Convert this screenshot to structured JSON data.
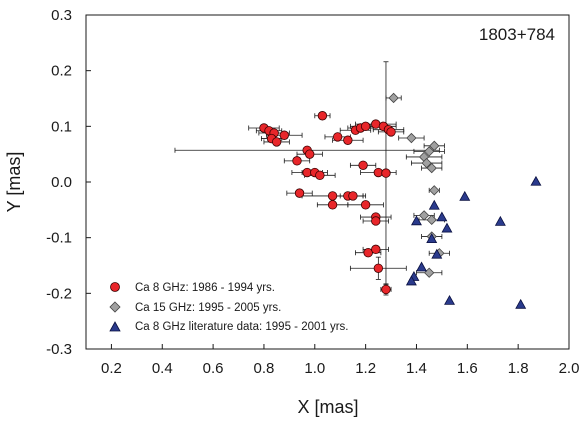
{
  "chart_data": {
    "type": "scatter",
    "annotation": "1803+784",
    "xlabel": "X [mas]",
    "ylabel": "Y [mas]",
    "xlim": [
      0.1,
      2.0
    ],
    "ylim": [
      -0.3,
      0.3
    ],
    "x_ticks": [
      "0.2",
      "0.4",
      "0.6",
      "0.8",
      "1.0",
      "1.2",
      "1.4",
      "1.6",
      "1.8",
      "2.0"
    ],
    "x_tick_values": [
      0.2,
      0.4,
      0.6,
      0.8,
      1.0,
      1.2,
      1.4,
      1.6,
      1.8,
      2.0
    ],
    "y_ticks": [
      "-0.3",
      "-0.2",
      "-0.1",
      "0.0",
      "0.1",
      "0.2",
      "0.3"
    ],
    "y_tick_values": [
      -0.3,
      -0.2,
      -0.1,
      0.0,
      0.1,
      0.2,
      0.3
    ],
    "grid": false,
    "legend_position": "bottom-left",
    "series": [
      {
        "name": "Ca 8 GHz: 1986 - 1994 yrs.",
        "marker": "circle",
        "color": "#e8262a",
        "points": [
          {
            "x": 0.8,
            "y": 0.097,
            "xerr": 0.06,
            "yerr": 0
          },
          {
            "x": 0.82,
            "y": 0.092,
            "xerr": 0.05,
            "yerr": 0
          },
          {
            "x": 0.84,
            "y": 0.088,
            "xerr": 0.06,
            "yerr": 0
          },
          {
            "x": 0.83,
            "y": 0.078,
            "xerr": 0.04,
            "yerr": 0
          },
          {
            "x": 0.85,
            "y": 0.072,
            "xerr": 0.05,
            "yerr": 0
          },
          {
            "x": 0.88,
            "y": 0.084,
            "xerr": 0.07,
            "yerr": 0
          },
          {
            "x": 1.03,
            "y": 0.119,
            "xerr": 0.03,
            "yerr": 0
          },
          {
            "x": 1.09,
            "y": 0.081,
            "xerr": 0.05,
            "yerr": 0
          },
          {
            "x": 1.13,
            "y": 0.075,
            "xerr": 0.06,
            "yerr": 0
          },
          {
            "x": 1.16,
            "y": 0.093,
            "xerr": 0.06,
            "yerr": 0
          },
          {
            "x": 1.18,
            "y": 0.097,
            "xerr": 0.05,
            "yerr": 0
          },
          {
            "x": 1.2,
            "y": 0.1,
            "xerr": 0.06,
            "yerr": 0
          },
          {
            "x": 1.24,
            "y": 0.104,
            "xerr": 0.08,
            "yerr": 0
          },
          {
            "x": 1.27,
            "y": 0.1,
            "xerr": 0.05,
            "yerr": 0
          },
          {
            "x": 1.29,
            "y": 0.094,
            "xerr": 0.06,
            "yerr": 0
          },
          {
            "x": 1.3,
            "y": 0.09,
            "xerr": 0.05,
            "yerr": 0
          },
          {
            "x": 0.97,
            "y": 0.057,
            "xerr": 0.52,
            "yerr": 0
          },
          {
            "x": 0.98,
            "y": 0.05,
            "xerr": 0.05,
            "yerr": 0
          },
          {
            "x": 0.93,
            "y": 0.038,
            "xerr": 0.05,
            "yerr": 0
          },
          {
            "x": 0.97,
            "y": 0.017,
            "xerr": 0.06,
            "yerr": 0
          },
          {
            "x": 1.0,
            "y": 0.017,
            "xerr": 0.05,
            "yerr": 0
          },
          {
            "x": 1.02,
            "y": 0.012,
            "xerr": 0.06,
            "yerr": 0
          },
          {
            "x": 1.19,
            "y": 0.03,
            "xerr": 0.05,
            "yerr": 0
          },
          {
            "x": 1.25,
            "y": 0.017,
            "xerr": 0.07,
            "yerr": 0
          },
          {
            "x": 1.28,
            "y": 0.016,
            "xerr": 0.0,
            "yerr": 0.2
          },
          {
            "x": 0.94,
            "y": -0.02,
            "xerr": 0.05,
            "yerr": 0
          },
          {
            "x": 1.07,
            "y": -0.025,
            "xerr": 0.12,
            "yerr": 0
          },
          {
            "x": 1.13,
            "y": -0.025,
            "xerr": 0.06,
            "yerr": 0
          },
          {
            "x": 1.15,
            "y": -0.025,
            "xerr": 0.05,
            "yerr": 0
          },
          {
            "x": 1.07,
            "y": -0.041,
            "xerr": 0.06,
            "yerr": 0
          },
          {
            "x": 1.2,
            "y": -0.041,
            "xerr": 0.07,
            "yerr": 0
          },
          {
            "x": 1.24,
            "y": -0.063,
            "xerr": 0.06,
            "yerr": 0
          },
          {
            "x": 1.24,
            "y": -0.07,
            "xerr": 0.05,
            "yerr": 0
          },
          {
            "x": 1.21,
            "y": -0.127,
            "xerr": 0.05,
            "yerr": 0
          },
          {
            "x": 1.24,
            "y": -0.121,
            "xerr": 0.05,
            "yerr": 0
          },
          {
            "x": 1.25,
            "y": -0.155,
            "xerr": 0.11,
            "yerr": 0.02
          },
          {
            "x": 1.28,
            "y": -0.193,
            "xerr": 0.02,
            "yerr": 0.01
          }
        ]
      },
      {
        "name": "Ca 15 GHz: 1995 - 2005 yrs.",
        "marker": "diamond",
        "color": "#a0a0a0",
        "points": [
          {
            "x": 1.31,
            "y": 0.151,
            "xerr": 0.03,
            "yerr": 0
          },
          {
            "x": 1.38,
            "y": 0.079,
            "xerr": 0.05,
            "yerr": 0
          },
          {
            "x": 1.47,
            "y": 0.065,
            "xerr": 0.04,
            "yerr": 0
          },
          {
            "x": 1.45,
            "y": 0.055,
            "xerr": 0.06,
            "yerr": 0
          },
          {
            "x": 1.43,
            "y": 0.045,
            "xerr": 0.07,
            "yerr": 0
          },
          {
            "x": 1.44,
            "y": 0.034,
            "xerr": 0.06,
            "yerr": 0
          },
          {
            "x": 1.46,
            "y": 0.025,
            "xerr": 0.04,
            "yerr": 0
          },
          {
            "x": 1.47,
            "y": -0.015,
            "xerr": 0.02,
            "yerr": 0
          },
          {
            "x": 1.43,
            "y": -0.06,
            "xerr": 0.04,
            "yerr": 0
          },
          {
            "x": 1.46,
            "y": -0.068,
            "xerr": 0.05,
            "yerr": 0
          },
          {
            "x": 1.46,
            "y": -0.098,
            "xerr": 0.04,
            "yerr": 0
          },
          {
            "x": 1.49,
            "y": -0.128,
            "xerr": 0.04,
            "yerr": 0
          },
          {
            "x": 1.45,
            "y": -0.163,
            "xerr": 0.05,
            "yerr": 0
          }
        ]
      },
      {
        "name": "Ca 8 GHz literature data: 1995 - 2001 yrs.",
        "marker": "triangle",
        "color": "#2a3a8c",
        "points": [
          {
            "x": 1.87,
            "y": 0.001
          },
          {
            "x": 1.59,
            "y": -0.026
          },
          {
            "x": 1.47,
            "y": -0.042
          },
          {
            "x": 1.5,
            "y": -0.063
          },
          {
            "x": 1.4,
            "y": -0.07
          },
          {
            "x": 1.52,
            "y": -0.083
          },
          {
            "x": 1.73,
            "y": -0.071
          },
          {
            "x": 1.46,
            "y": -0.102
          },
          {
            "x": 1.48,
            "y": -0.13
          },
          {
            "x": 1.42,
            "y": -0.153
          },
          {
            "x": 1.39,
            "y": -0.17
          },
          {
            "x": 1.38,
            "y": -0.178
          },
          {
            "x": 1.53,
            "y": -0.213
          },
          {
            "x": 1.81,
            "y": -0.22
          }
        ]
      }
    ]
  }
}
